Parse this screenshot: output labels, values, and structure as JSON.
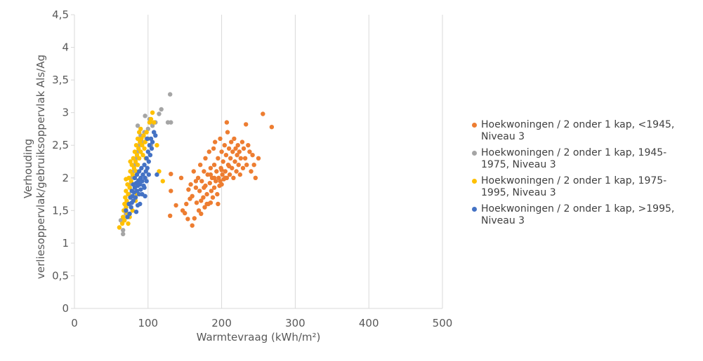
{
  "chart_data": {
    "type": "scatter",
    "title": "",
    "xlabel": "Warmtevraag (kWh/m²)",
    "ylabel_lines": [
      "Verhouding",
      "verliesoppervlak/gebruiksoppervlak Als/Ag"
    ],
    "xlim": [
      0,
      500
    ],
    "ylim": [
      0,
      4.5
    ],
    "x_ticks": [
      "0",
      "100",
      "200",
      "300",
      "400",
      "500"
    ],
    "y_ticks": [
      "0",
      "0,5",
      "1",
      "1,5",
      "2",
      "2,5",
      "3",
      "3,5",
      "4",
      "4,5"
    ],
    "grid": "vertical-major",
    "legend_position": "right",
    "series": [
      {
        "name": "Hoekwoningen / 2 onder 1 kap, <1945, Niveau 3",
        "color": "#ED7D31",
        "points": [
          [
            130,
            1.42
          ],
          [
            131,
            1.8
          ],
          [
            131,
            2.06
          ],
          [
            138,
            1.58
          ],
          [
            145,
            2.0
          ],
          [
            147,
            1.5
          ],
          [
            150,
            1.46
          ],
          [
            152,
            1.6
          ],
          [
            154,
            1.37
          ],
          [
            155,
            1.82
          ],
          [
            157,
            1.68
          ],
          [
            158,
            1.9
          ],
          [
            160,
            1.27
          ],
          [
            160,
            1.72
          ],
          [
            162,
            2.1
          ],
          [
            163,
            1.38
          ],
          [
            165,
            1.85
          ],
          [
            166,
            1.62
          ],
          [
            168,
            2.0
          ],
          [
            169,
            1.5
          ],
          [
            170,
            1.8
          ],
          [
            171,
            2.2
          ],
          [
            172,
            1.65
          ],
          [
            173,
            1.95
          ],
          [
            175,
            1.7
          ],
          [
            176,
            2.1
          ],
          [
            177,
            1.55
          ],
          [
            178,
            1.88
          ],
          [
            178,
            2.3
          ],
          [
            180,
            1.75
          ],
          [
            181,
            2.05
          ],
          [
            182,
            1.6
          ],
          [
            183,
            2.4
          ],
          [
            184,
            1.92
          ],
          [
            185,
            2.15
          ],
          [
            186,
            1.8
          ],
          [
            187,
            2.0
          ],
          [
            188,
            1.7
          ],
          [
            189,
            2.45
          ],
          [
            190,
            1.85
          ],
          [
            190,
            2.2
          ],
          [
            191,
            2.55
          ],
          [
            192,
            1.95
          ],
          [
            193,
            2.1
          ],
          [
            194,
            1.75
          ],
          [
            195,
            2.3
          ],
          [
            196,
            2.0
          ],
          [
            197,
            1.88
          ],
          [
            198,
            2.6
          ],
          [
            199,
            2.15
          ],
          [
            200,
            1.9
          ],
          [
            200,
            2.4
          ],
          [
            201,
            2.05
          ],
          [
            202,
            2.25
          ],
          [
            203,
            1.98
          ],
          [
            204,
            2.5
          ],
          [
            205,
            2.1
          ],
          [
            206,
            2.35
          ],
          [
            207,
            2.0
          ],
          [
            208,
            2.7
          ],
          [
            209,
            2.2
          ],
          [
            210,
            2.45
          ],
          [
            211,
            2.05
          ],
          [
            212,
            2.3
          ],
          [
            213,
            2.55
          ],
          [
            214,
            2.15
          ],
          [
            215,
            2.4
          ],
          [
            216,
            2.0
          ],
          [
            217,
            2.6
          ],
          [
            218,
            2.25
          ],
          [
            219,
            2.45
          ],
          [
            220,
            2.1
          ],
          [
            221,
            2.35
          ],
          [
            222,
            2.5
          ],
          [
            223,
            2.2
          ],
          [
            224,
            2.4
          ],
          [
            225,
            2.05
          ],
          [
            226,
            2.3
          ],
          [
            228,
            2.55
          ],
          [
            229,
            2.15
          ],
          [
            230,
            2.45
          ],
          [
            232,
            2.3
          ],
          [
            233,
            2.82
          ],
          [
            234,
            2.2
          ],
          [
            236,
            2.5
          ],
          [
            238,
            2.4
          ],
          [
            240,
            2.1
          ],
          [
            242,
            2.35
          ],
          [
            244,
            2.2
          ],
          [
            246,
            2.0
          ],
          [
            250,
            2.3
          ],
          [
            256,
            2.98
          ],
          [
            268,
            2.78
          ],
          [
            207,
            2.85
          ],
          [
            180,
            1.6
          ],
          [
            185,
            1.62
          ],
          [
            172,
            1.45
          ],
          [
            195,
            1.6
          ],
          [
            165,
            1.95
          ],
          [
            176,
            1.85
          ],
          [
            190,
            2.0
          ],
          [
            200,
            2.12
          ],
          [
            210,
            2.18
          ],
          [
            185,
            2.05
          ],
          [
            198,
            1.95
          ],
          [
            205,
            2.0
          ]
        ]
      },
      {
        "name": "Hoekwoningen / 2 onder 1 kap, 1945-1975, Niveau 3",
        "color": "#A5A5A5",
        "points": [
          [
            63,
            1.35
          ],
          [
            66,
            1.14
          ],
          [
            66,
            1.2
          ],
          [
            70,
            1.45
          ],
          [
            72,
            1.6
          ],
          [
            74,
            1.75
          ],
          [
            76,
            1.9
          ],
          [
            78,
            2.0
          ],
          [
            80,
            2.1
          ],
          [
            82,
            2.2
          ],
          [
            84,
            2.3
          ],
          [
            86,
            2.4
          ],
          [
            88,
            2.5
          ],
          [
            90,
            2.65
          ],
          [
            92,
            2.55
          ],
          [
            95,
            2.7
          ],
          [
            98,
            2.6
          ],
          [
            100,
            2.75
          ],
          [
            102,
            2.9
          ],
          [
            103,
            2.85
          ],
          [
            104,
            2.5
          ],
          [
            106,
            2.8
          ],
          [
            108,
            2.7
          ],
          [
            115,
            2.98
          ],
          [
            118,
            3.05
          ],
          [
            127,
            2.85
          ],
          [
            131,
            2.85
          ],
          [
            130,
            3.28
          ],
          [
            86,
            2.8
          ],
          [
            96,
            2.95
          ],
          [
            110,
            2.85
          ]
        ]
      },
      {
        "name": "Hoekwoningen / 2 onder 1 kap, 1975-1995, Niveau 3",
        "color": "#FFC000",
        "points": [
          [
            61,
            1.24
          ],
          [
            65,
            1.3
          ],
          [
            66,
            1.4
          ],
          [
            67,
            1.5
          ],
          [
            68,
            1.6
          ],
          [
            68,
            1.35
          ],
          [
            69,
            1.7
          ],
          [
            70,
            1.55
          ],
          [
            70,
            1.8
          ],
          [
            71,
            1.65
          ],
          [
            72,
            1.9
          ],
          [
            72,
            1.45
          ],
          [
            73,
            1.75
          ],
          [
            74,
            2.0
          ],
          [
            74,
            1.6
          ],
          [
            75,
            1.85
          ],
          [
            76,
            2.1
          ],
          [
            76,
            1.7
          ],
          [
            77,
            1.95
          ],
          [
            78,
            2.2
          ],
          [
            78,
            1.8
          ],
          [
            79,
            2.05
          ],
          [
            80,
            2.3
          ],
          [
            80,
            1.9
          ],
          [
            81,
            2.15
          ],
          [
            82,
            2.4
          ],
          [
            82,
            2.0
          ],
          [
            83,
            2.25
          ],
          [
            84,
            2.5
          ],
          [
            84,
            2.1
          ],
          [
            85,
            2.35
          ],
          [
            86,
            2.6
          ],
          [
            86,
            2.2
          ],
          [
            87,
            2.45
          ],
          [
            88,
            2.7
          ],
          [
            88,
            2.3
          ],
          [
            89,
            2.55
          ],
          [
            90,
            2.4
          ],
          [
            90,
            2.75
          ],
          [
            91,
            2.6
          ],
          [
            92,
            2.5
          ],
          [
            93,
            2.35
          ],
          [
            94,
            2.65
          ],
          [
            95,
            2.45
          ],
          [
            96,
            2.55
          ],
          [
            97,
            2.3
          ],
          [
            98,
            2.7
          ],
          [
            100,
            2.6
          ],
          [
            102,
            2.85
          ],
          [
            104,
            2.9
          ],
          [
            106,
            3.0
          ],
          [
            108,
            2.85
          ],
          [
            112,
            2.5
          ],
          [
            115,
            2.1
          ],
          [
            120,
            1.95
          ],
          [
            75,
            1.4
          ],
          [
            73,
            1.3
          ],
          [
            79,
            1.5
          ],
          [
            85,
            1.75
          ],
          [
            87,
            1.9
          ],
          [
            70,
            1.98
          ],
          [
            76,
            2.25
          ],
          [
            83,
            1.65
          ]
        ]
      },
      {
        "name": "Hoekwoningen / 2 onder 1 kap, >1995, Niveau 3",
        "color": "#4472C4",
        "points": [
          [
            70,
            1.5
          ],
          [
            72,
            1.4
          ],
          [
            74,
            1.6
          ],
          [
            75,
            1.45
          ],
          [
            76,
            1.7
          ],
          [
            77,
            1.55
          ],
          [
            78,
            1.8
          ],
          [
            78,
            1.62
          ],
          [
            79,
            1.72
          ],
          [
            80,
            1.9
          ],
          [
            80,
            1.65
          ],
          [
            81,
            1.78
          ],
          [
            82,
            1.85
          ],
          [
            82,
            2.0
          ],
          [
            83,
            1.7
          ],
          [
            84,
            1.92
          ],
          [
            85,
            1.8
          ],
          [
            85,
            2.05
          ],
          [
            86,
            1.88
          ],
          [
            87,
            1.96
          ],
          [
            88,
            2.1
          ],
          [
            88,
            1.75
          ],
          [
            89,
            1.9
          ],
          [
            90,
            2.0
          ],
          [
            90,
            1.82
          ],
          [
            91,
            2.15
          ],
          [
            92,
            1.95
          ],
          [
            93,
            2.05
          ],
          [
            94,
            1.88
          ],
          [
            95,
            2.2
          ],
          [
            96,
            2.0
          ],
          [
            97,
            2.1
          ],
          [
            98,
            2.3
          ],
          [
            99,
            2.15
          ],
          [
            100,
            2.4
          ],
          [
            101,
            2.25
          ],
          [
            102,
            2.5
          ],
          [
            103,
            2.35
          ],
          [
            104,
            2.6
          ],
          [
            105,
            2.45
          ],
          [
            106,
            2.55
          ],
          [
            108,
            2.7
          ],
          [
            110,
            2.65
          ],
          [
            98,
            1.95
          ],
          [
            95,
            1.85
          ],
          [
            92,
            1.75
          ],
          [
            89,
            1.6
          ],
          [
            86,
            1.58
          ],
          [
            101,
            2.05
          ],
          [
            96,
            1.72
          ],
          [
            112,
            2.05
          ],
          [
            84,
            1.48
          ],
          [
            99,
            2.6
          ]
        ]
      }
    ]
  }
}
